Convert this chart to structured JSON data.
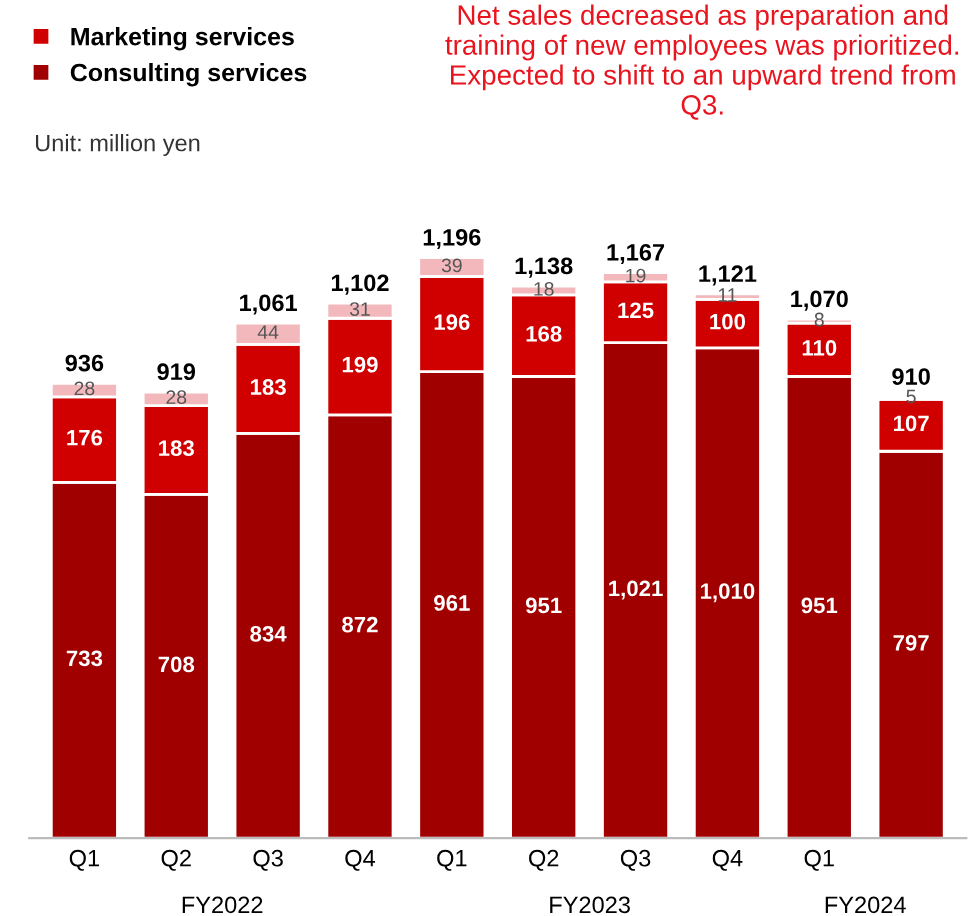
{
  "chart_data": {
    "type": "bar",
    "stacked": true,
    "categories": [
      "Q1",
      "Q2",
      "Q3",
      "Q4",
      "Q1",
      "Q2",
      "Q3",
      "Q4",
      "Q1",
      null
    ],
    "series": [
      {
        "name": "Consulting services",
        "color": "#a00000",
        "values": [
          733,
          708,
          834,
          872,
          961,
          951,
          1021,
          1010,
          951,
          797
        ],
        "value_labels": [
          "733",
          "708",
          "834",
          "872",
          "961",
          "951",
          "1,021",
          "1,010",
          "951",
          "797"
        ]
      },
      {
        "name": "Marketing services",
        "color": "#d00000",
        "values": [
          176,
          183,
          183,
          199,
          196,
          168,
          125,
          100,
          110,
          107
        ]
      },
      {
        "color": "#f2b8bc",
        "values": [
          28,
          28,
          44,
          31,
          39,
          18,
          19,
          11,
          8,
          5
        ]
      }
    ],
    "data_labels": true,
    "totals": [
      "936",
      "919",
      "1,061",
      "1,102",
      "1,196",
      "1,138",
      "1,167",
      "1,121",
      "1,070",
      "910"
    ],
    "annotations": [
      "FY2022",
      "FY2023",
      "FY2024",
      "Unit: million yen",
      "Net sales decreased as preparation and training of new employees was prioritized. Expected to shift to an upward trend from Q3."
    ],
    "legend": "top left",
    "grid": false
  }
}
